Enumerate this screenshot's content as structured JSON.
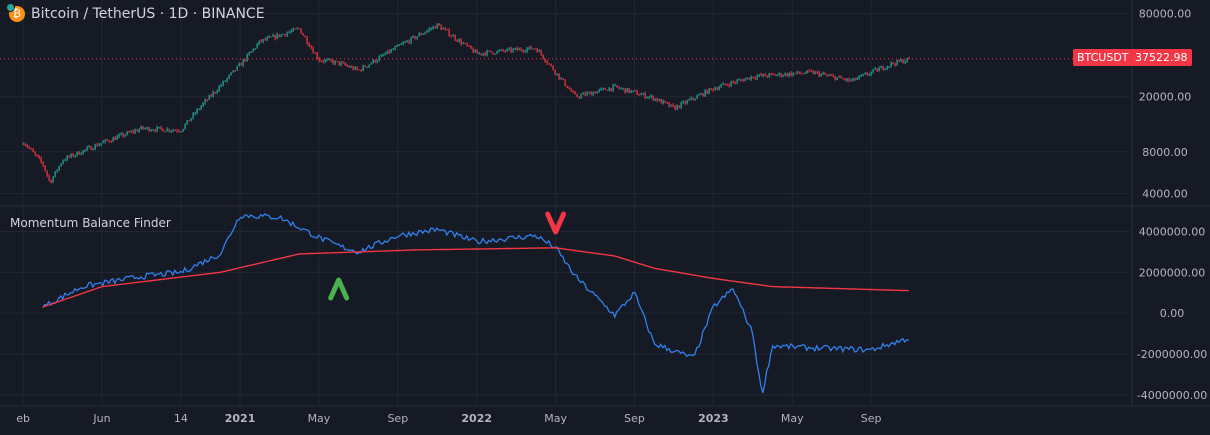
{
  "header": {
    "title": "Bitcoin / TetherUS · 1D · BINANCE",
    "symbol_tag": "BTCUSDT",
    "last_price": "37522.98"
  },
  "indicator": {
    "title": "Momentum Balance Finder"
  },
  "colors": {
    "background": "#161a25",
    "up": "#26a69a",
    "down": "#f23645",
    "momentum": "#2f80ed",
    "balance": "#f23645",
    "buy_signal": "#4caf50",
    "sell_signal": "#f23645"
  },
  "time_axis": {
    "labels": [
      "eb",
      "Jun",
      "14",
      "2021",
      "May",
      "Sep",
      "2022",
      "May",
      "Sep",
      "2023",
      "May",
      "Sep"
    ],
    "bold": [
      "2021",
      "2022",
      "2023"
    ]
  },
  "chart_data": [
    {
      "type": "candlestick",
      "title": "Bitcoin / TetherUS · 1D · BINANCE",
      "scale": "log",
      "y_ticks": [
        "80000.00",
        "20000.00",
        "8000.00",
        "4000.00"
      ],
      "y_tick_values": [
        80000,
        20000,
        8000,
        4000
      ],
      "ylim": [
        3300,
        100000
      ],
      "last_value": 37522.98,
      "x_range": [
        "2020-02",
        "2023-11"
      ],
      "close_keypoints": [
        {
          "x": "2020-02",
          "y": 9500
        },
        {
          "x": "2020-03",
          "y": 6500
        },
        {
          "x": "2020-03-12",
          "y": 4800
        },
        {
          "x": "2020-04",
          "y": 7000
        },
        {
          "x": "2020-06",
          "y": 9300
        },
        {
          "x": "2020-08",
          "y": 11800
        },
        {
          "x": "2020-10",
          "y": 11500
        },
        {
          "x": "2020-11",
          "y": 17000
        },
        {
          "x": "2021-01",
          "y": 34000
        },
        {
          "x": "2021-02",
          "y": 50000
        },
        {
          "x": "2021-04",
          "y": 62000
        },
        {
          "x": "2021-05",
          "y": 37000
        },
        {
          "x": "2021-06",
          "y": 35000
        },
        {
          "x": "2021-07",
          "y": 31000
        },
        {
          "x": "2021-09",
          "y": 46000
        },
        {
          "x": "2021-11",
          "y": 66000
        },
        {
          "x": "2022-01",
          "y": 41000
        },
        {
          "x": "2022-04",
          "y": 45000
        },
        {
          "x": "2022-05",
          "y": 30000
        },
        {
          "x": "2022-06",
          "y": 20000
        },
        {
          "x": "2022-08",
          "y": 23500
        },
        {
          "x": "2022-10",
          "y": 19500
        },
        {
          "x": "2022-11",
          "y": 16500
        },
        {
          "x": "2023-01",
          "y": 23000
        },
        {
          "x": "2023-03",
          "y": 28000
        },
        {
          "x": "2023-06",
          "y": 30000
        },
        {
          "x": "2023-08",
          "y": 26000
        },
        {
          "x": "2023-10",
          "y": 34500
        },
        {
          "x": "2023-11",
          "y": 37522.98
        }
      ]
    },
    {
      "type": "line",
      "title": "Momentum Balance Finder",
      "y_ticks": [
        "4000000.00",
        "2000000.00",
        "0.00",
        "-2000000.00",
        "-4000000.00"
      ],
      "y_tick_values": [
        4000000,
        2000000,
        0,
        -2000000,
        -4000000
      ],
      "ylim": [
        -4500000,
        5200000
      ],
      "series": [
        {
          "color": "#2f80ed",
          "points": [
            {
              "x": "2020-03",
              "y": 300000
            },
            {
              "x": "2020-05",
              "y": 1300000
            },
            {
              "x": "2020-08",
              "y": 1800000
            },
            {
              "x": "2020-10",
              "y": 2000000
            },
            {
              "x": "2020-12",
              "y": 2900000
            },
            {
              "x": "2021-01",
              "y": 4800000
            },
            {
              "x": "2021-03",
              "y": 4700000
            },
            {
              "x": "2021-05",
              "y": 3700000
            },
            {
              "x": "2021-06",
              "y": 3300000
            },
            {
              "x": "2021-07",
              "y": 3000000
            },
            {
              "x": "2021-09",
              "y": 3800000
            },
            {
              "x": "2021-11",
              "y": 4100000
            },
            {
              "x": "2022-01",
              "y": 3500000
            },
            {
              "x": "2022-04",
              "y": 3800000
            },
            {
              "x": "2022-05",
              "y": 3200000
            },
            {
              "x": "2022-06",
              "y": 1800000
            },
            {
              "x": "2022-08",
              "y": -100000
            },
            {
              "x": "2022-09",
              "y": 1000000
            },
            {
              "x": "2022-10",
              "y": -1500000
            },
            {
              "x": "2022-12",
              "y": -2200000
            },
            {
              "x": "2023-01",
              "y": 300000
            },
            {
              "x": "2023-02",
              "y": 1200000
            },
            {
              "x": "2023-03",
              "y": -1000000
            },
            {
              "x": "2023-03-15",
              "y": -4000000
            },
            {
              "x": "2023-04",
              "y": -1600000
            },
            {
              "x": "2023-06",
              "y": -1700000
            },
            {
              "x": "2023-09",
              "y": -1800000
            },
            {
              "x": "2023-11",
              "y": -1200000
            }
          ]
        },
        {
          "color": "#f23645",
          "points": [
            {
              "x": "2020-03",
              "y": 300000
            },
            {
              "x": "2020-06",
              "y": 1300000
            },
            {
              "x": "2020-12",
              "y": 2000000
            },
            {
              "x": "2021-04",
              "y": 2900000
            },
            {
              "x": "2021-10",
              "y": 3100000
            },
            {
              "x": "2022-05",
              "y": 3200000
            },
            {
              "x": "2022-08",
              "y": 2800000
            },
            {
              "x": "2022-10",
              "y": 2200000
            },
            {
              "x": "2023-01",
              "y": 1700000
            },
            {
              "x": "2023-04",
              "y": 1300000
            },
            {
              "x": "2023-11",
              "y": 1100000
            }
          ]
        }
      ],
      "signals": [
        {
          "kind": "buy",
          "x": "2021-06",
          "icon": "up-arrow-icon",
          "color": "#4caf50"
        },
        {
          "kind": "sell",
          "x": "2022-05",
          "icon": "down-arrow-icon",
          "color": "#f23645"
        }
      ]
    }
  ]
}
